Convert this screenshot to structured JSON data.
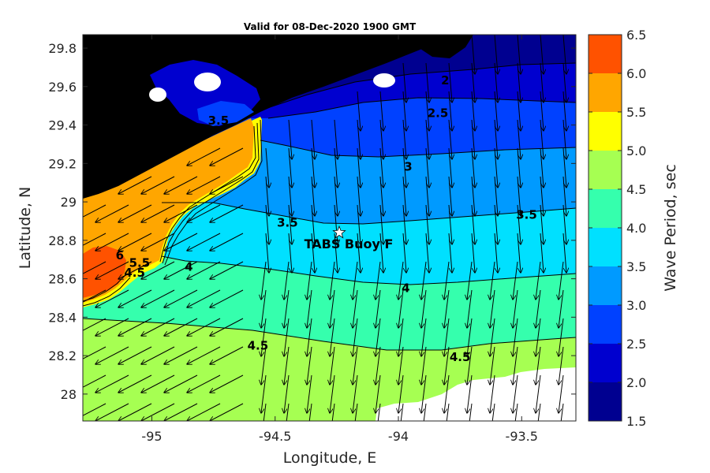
{
  "chart_data": {
    "type": "heatmap",
    "title": "Valid for 08-Dec-2020 1900 GMT",
    "xlabel": "Longitude, E",
    "ylabel": "Latitude, N",
    "xlim": [
      -95.28,
      -93.28
    ],
    "ylim": [
      27.86,
      29.87
    ],
    "xticks": [
      -95,
      -94.5,
      -94,
      -93.5
    ],
    "xtick_labels": [
      "-95",
      "-94.5",
      "-94",
      "-93.5"
    ],
    "yticks": [
      28,
      28.2,
      28.4,
      28.6,
      28.8,
      29,
      29.2,
      29.4,
      29.6,
      29.8
    ],
    "ytick_labels": [
      "28",
      "28.2",
      "28.4",
      "28.6",
      "28.8",
      "29",
      "29.2",
      "29.4",
      "29.6",
      "29.8"
    ],
    "colorbar": {
      "label": "Wave Period, sec",
      "range": [
        1.5,
        6.5
      ],
      "tick_labels": [
        "1.5",
        "2.0",
        "2.5",
        "3.0",
        "3.5",
        "4.0",
        "4.5",
        "5.0",
        "5.5",
        "6.0",
        "6.5"
      ],
      "colors": [
        "#000090",
        "#0000cf",
        "#0041ff",
        "#009aff",
        "#00e0ff",
        "#35ffad",
        "#a6ff52",
        "#ffff00",
        "#ffa600",
        "#ff5200"
      ]
    },
    "contour_labels": [
      {
        "text": "2",
        "lon": -93.81,
        "lat": 29.63
      },
      {
        "text": "2.5",
        "lon": -93.84,
        "lat": 29.46
      },
      {
        "text": "3",
        "lon": -93.96,
        "lat": 29.18
      },
      {
        "text": "3.5",
        "lon": -94.45,
        "lat": 28.89
      },
      {
        "text": "3.5",
        "lon": -93.48,
        "lat": 28.93
      },
      {
        "text": "4",
        "lon": -94.85,
        "lat": 28.66
      },
      {
        "text": "4",
        "lon": -93.97,
        "lat": 28.55
      },
      {
        "text": "4.5",
        "lon": -94.57,
        "lat": 28.25
      },
      {
        "text": "4.5",
        "lon": -93.75,
        "lat": 28.19
      },
      {
        "text": "6",
        "lon": -95.13,
        "lat": 28.72
      },
      {
        "text": "5.5",
        "lon": -95.05,
        "lat": 28.68
      },
      {
        "text": "4.5",
        "lon": -95.07,
        "lat": 28.63
      },
      {
        "text": "3.5",
        "lon": -94.73,
        "lat": 29.42
      }
    ],
    "station": {
      "label": "TABS Buoy F",
      "lon": -94.24,
      "lat": 28.84
    }
  }
}
